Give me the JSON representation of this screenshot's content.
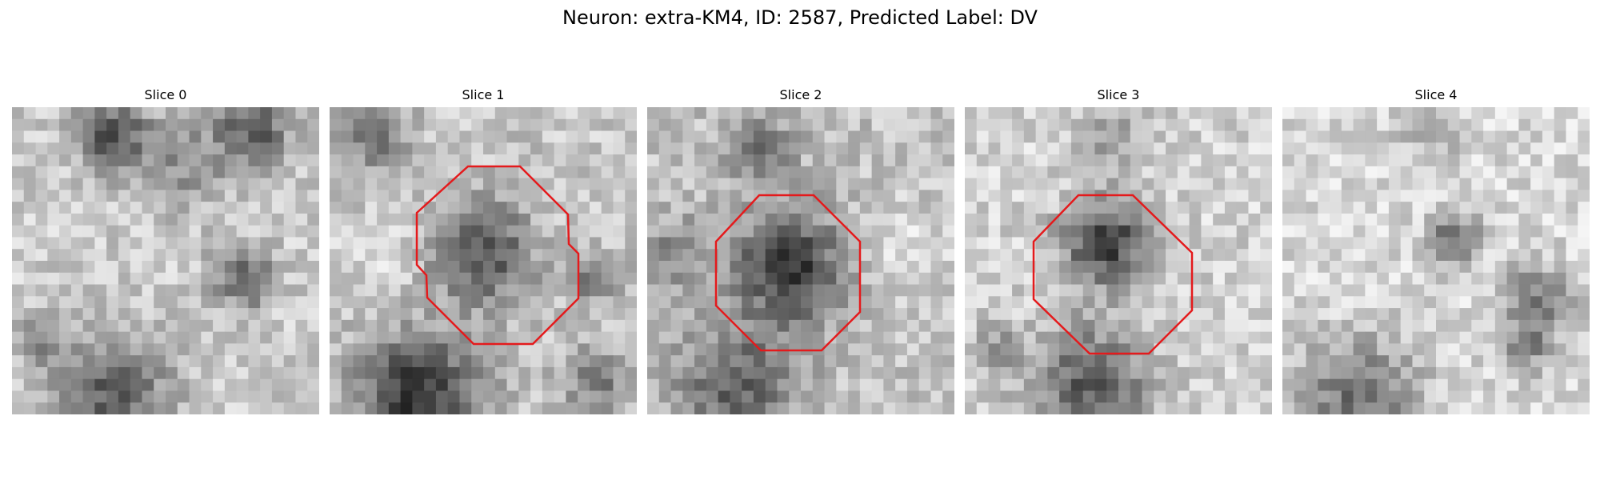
{
  "figure": {
    "title": "Neuron: extra-KM4, ID: 2587, Predicted Label: DV"
  },
  "panels": [
    {
      "title": "Slice 0",
      "seed": 11,
      "contour": false
    },
    {
      "title": "Slice 1",
      "seed": 23,
      "contour": true
    },
    {
      "title": "Slice 2",
      "seed": 37,
      "contour": true
    },
    {
      "title": "Slice 3",
      "seed": 53,
      "contour": true
    },
    {
      "title": "Slice 4",
      "seed": 71,
      "contour": false
    }
  ],
  "style": {
    "contour_color": "#e41a1c",
    "colormap": "gray"
  }
}
